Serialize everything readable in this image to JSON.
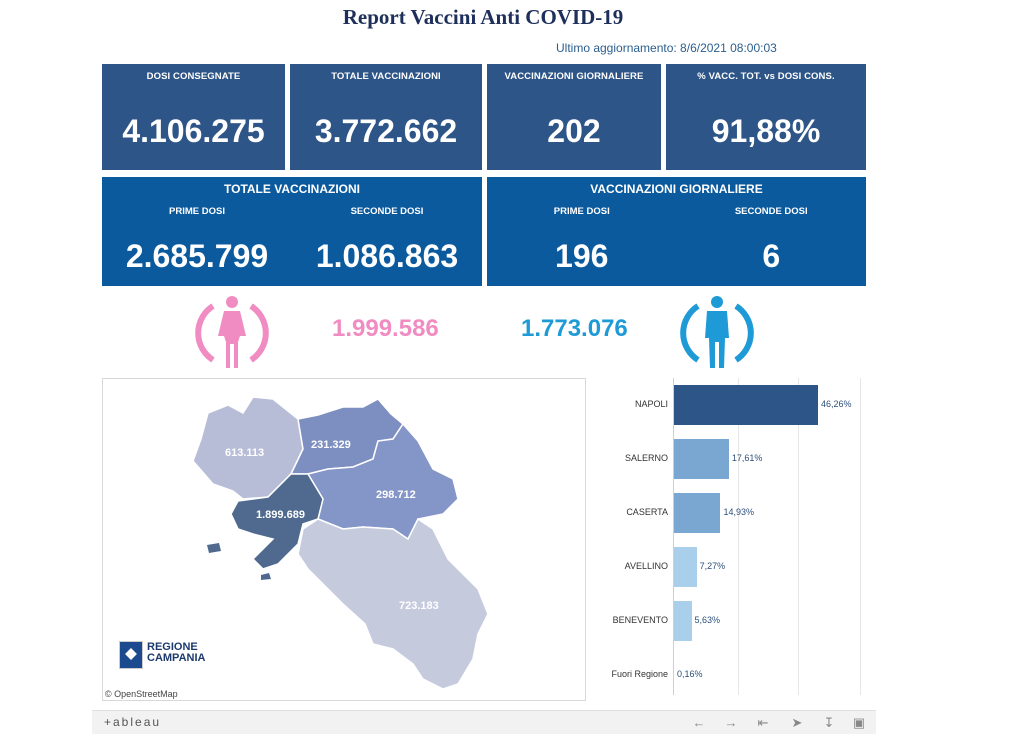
{
  "title": "Report Vaccini Anti COVID-19",
  "updated": "Ultimo aggiornamento: 8/6/2021 08:00:03",
  "kpis": [
    {
      "label": "DOSI  CONSEGNATE",
      "value": "4.106.275"
    },
    {
      "label": "TOTALE VACCINAZIONI",
      "value": "3.772.662"
    },
    {
      "label": "VACCINAZIONI GIORNALIERE",
      "value": "202"
    },
    {
      "label": "% VACC. TOT. vs DOSI CONS.",
      "value": "91,88%"
    }
  ],
  "totale": {
    "heading": "TOTALE VACCINAZIONI",
    "prime_label": "PRIME DOSI",
    "prime_value": "2.685.799",
    "seconde_label": "SECONDE DOSI",
    "seconde_value": "1.086.863"
  },
  "giornaliere": {
    "heading": "VACCINAZIONI GIORNALIERE",
    "prime_label": "PRIME DOSI",
    "prime_value": "196",
    "seconde_label": "SECONDE DOSI",
    "seconde_value": "6"
  },
  "gender": {
    "female_value": "1.999.586",
    "male_value": "1.773.076",
    "female_color": "#f08cc2",
    "male_color": "#1e9ad6",
    "female_icon": "female-icon",
    "male_icon": "male-icon"
  },
  "map": {
    "labels": {
      "caserta": "613.113",
      "benevento": "231.329",
      "avellino": "298.712",
      "napoli": "1.899.689",
      "salerno": "723.183"
    },
    "logo_line1": "REGIONE",
    "logo_line2": "CAMPANIA",
    "attribution": "© OpenStreetMap"
  },
  "chart_data": {
    "type": "bar",
    "orientation": "horizontal",
    "categories": [
      "NAPOLI",
      "SALERNO",
      "CASERTA",
      "AVELLINO",
      "BENEVENTO",
      "Fuori Regione"
    ],
    "values": [
      46.26,
      17.61,
      14.93,
      7.27,
      5.63,
      0.16
    ],
    "labels": [
      "46,26%",
      "17,61%",
      "14,93%",
      "7,27%",
      "5,63%",
      "0,16%"
    ],
    "colors": [
      "#2e5587",
      "#7aa7d1",
      "#7aa7d1",
      "#a9cfea",
      "#a9cfea",
      "#a9cfea"
    ],
    "xlim": [
      0,
      50
    ],
    "grid": true
  },
  "toolbar": {
    "logo": "+ableau",
    "buttons": [
      "undo-icon",
      "redo-icon",
      "revert-icon",
      "share-icon",
      "download-icon",
      "fullscreen-icon"
    ]
  }
}
